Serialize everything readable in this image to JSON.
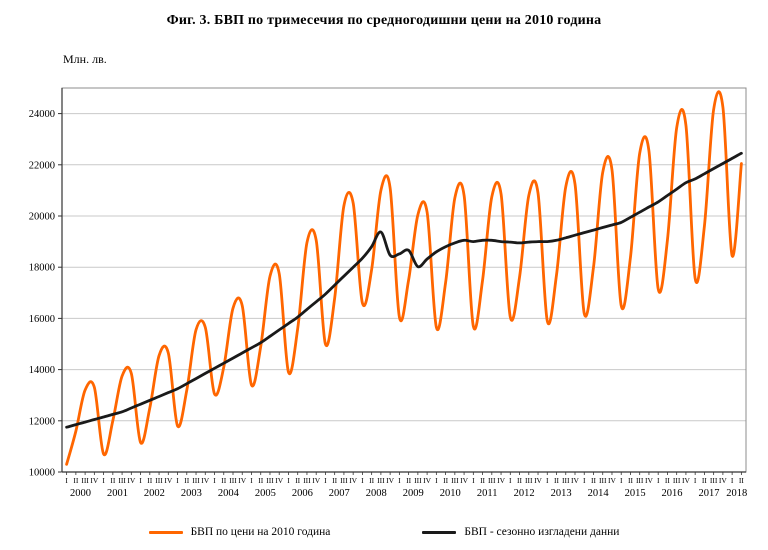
{
  "title": "Фиг. 3. БВП по тримесечия по средногодишни цени на 2010 година",
  "ylabel": "Млн. лв.",
  "legend": {
    "series1_label": "БВП  по цени на 2010 година",
    "series2_label": "БВП  - сезонно изгладени данни"
  },
  "colors": {
    "series1": "#FF6600",
    "series2": "#1a1a1a",
    "grid": "#c9c9c9",
    "border": "#8c8c8c",
    "axis": "#333333"
  },
  "chart_data": {
    "type": "line",
    "title": "Фиг. 3. БВП по тримесечия по средногодишни цени на 2010 година",
    "ylabel": "Млн. лв.",
    "grid": "horizontal",
    "legend_position": "bottom",
    "ylim": [
      10000,
      25000
    ],
    "y_ticks": [
      10000,
      12000,
      14000,
      16000,
      18000,
      20000,
      22000,
      24000
    ],
    "years": [
      2000,
      2001,
      2002,
      2003,
      2004,
      2005,
      2006,
      2007,
      2008,
      2009,
      2010,
      2011,
      2012,
      2013,
      2014,
      2015,
      2016,
      2017,
      2018
    ],
    "quarter_labels": [
      "I",
      "II",
      "III",
      "IV"
    ],
    "quarters_in_last_year": 2,
    "n_points": 74,
    "series": [
      {
        "name": "БВП  по цени на 2010 година",
        "color": "#FF6600",
        "values": [
          10300,
          11600,
          13200,
          13300,
          10700,
          12000,
          13750,
          13850,
          11150,
          12500,
          14550,
          14650,
          11800,
          13200,
          15550,
          15650,
          13050,
          14100,
          16400,
          16500,
          13400,
          14900,
          17650,
          17750,
          13900,
          15600,
          18950,
          19050,
          15000,
          16800,
          20400,
          20500,
          16600,
          17900,
          21000,
          21100,
          16050,
          17500,
          20050,
          20150,
          15650,
          17400,
          20700,
          20800,
          15700,
          17500,
          20750,
          20850,
          16050,
          17600,
          20800,
          20900,
          15900,
          17700,
          21150,
          21250,
          16200,
          18000,
          21700,
          21800,
          16500,
          18400,
          22450,
          22550,
          17150,
          19050,
          23450,
          23550,
          17550,
          19600,
          24150,
          24250,
          18450,
          22050
        ]
      },
      {
        "name": "БВП  - сезонно изгладени данни",
        "color": "#1a1a1a",
        "values": [
          11750,
          11850,
          11950,
          12050,
          12150,
          12250,
          12350,
          12500,
          12650,
          12800,
          12950,
          13100,
          13250,
          13450,
          13650,
          13850,
          14050,
          14250,
          14450,
          14650,
          14850,
          15050,
          15300,
          15550,
          15800,
          16050,
          16350,
          16650,
          16950,
          17300,
          17650,
          18000,
          18350,
          18800,
          19375,
          18470,
          18520,
          18660,
          18020,
          18320,
          18600,
          18800,
          18950,
          19050,
          19000,
          19050,
          19050,
          19000,
          18980,
          18950,
          18980,
          19000,
          19000,
          19050,
          19150,
          19250,
          19350,
          19450,
          19550,
          19650,
          19750,
          19950,
          20150,
          20350,
          20550,
          20800,
          21050,
          21300,
          21450,
          21650,
          21850,
          22050,
          22250,
          22450
        ]
      }
    ]
  }
}
